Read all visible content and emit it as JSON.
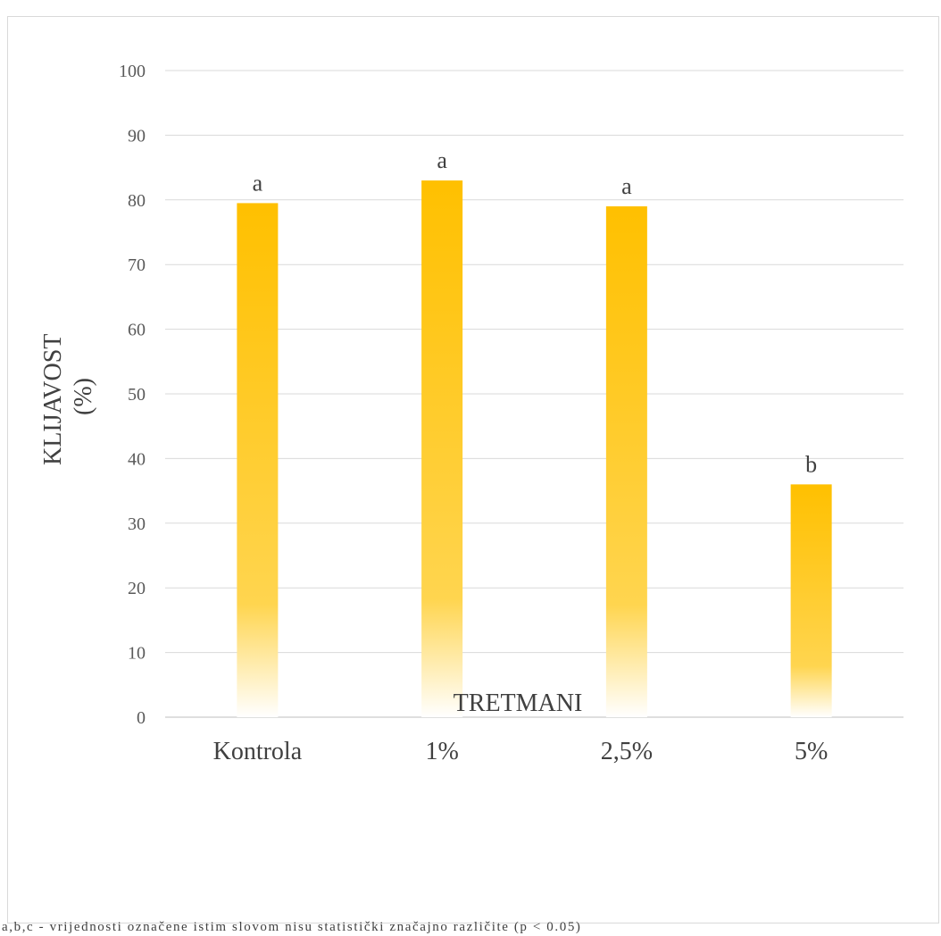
{
  "chart_data": {
    "type": "bar",
    "categories": [
      "Kontrola",
      "1%",
      "2,5%",
      "5%"
    ],
    "values": [
      79.5,
      83,
      79,
      36
    ],
    "data_labels": [
      "a",
      "a",
      "a",
      "b"
    ],
    "xlabel": "TRETMANI",
    "ylabel": [
      "KLIJAVOST",
      "(%)"
    ],
    "ylim": [
      0,
      100
    ],
    "yticks": [
      0,
      10,
      20,
      30,
      40,
      50,
      60,
      70,
      80,
      90,
      100
    ],
    "grid": true,
    "legend": "none",
    "bar_color": "#FFC000",
    "bar_fill": "gradient fading to white at base",
    "footnote": "a,b,c - vrijednosti označene istim slovom nisu statistički značajno različite (p < 0.05)"
  }
}
